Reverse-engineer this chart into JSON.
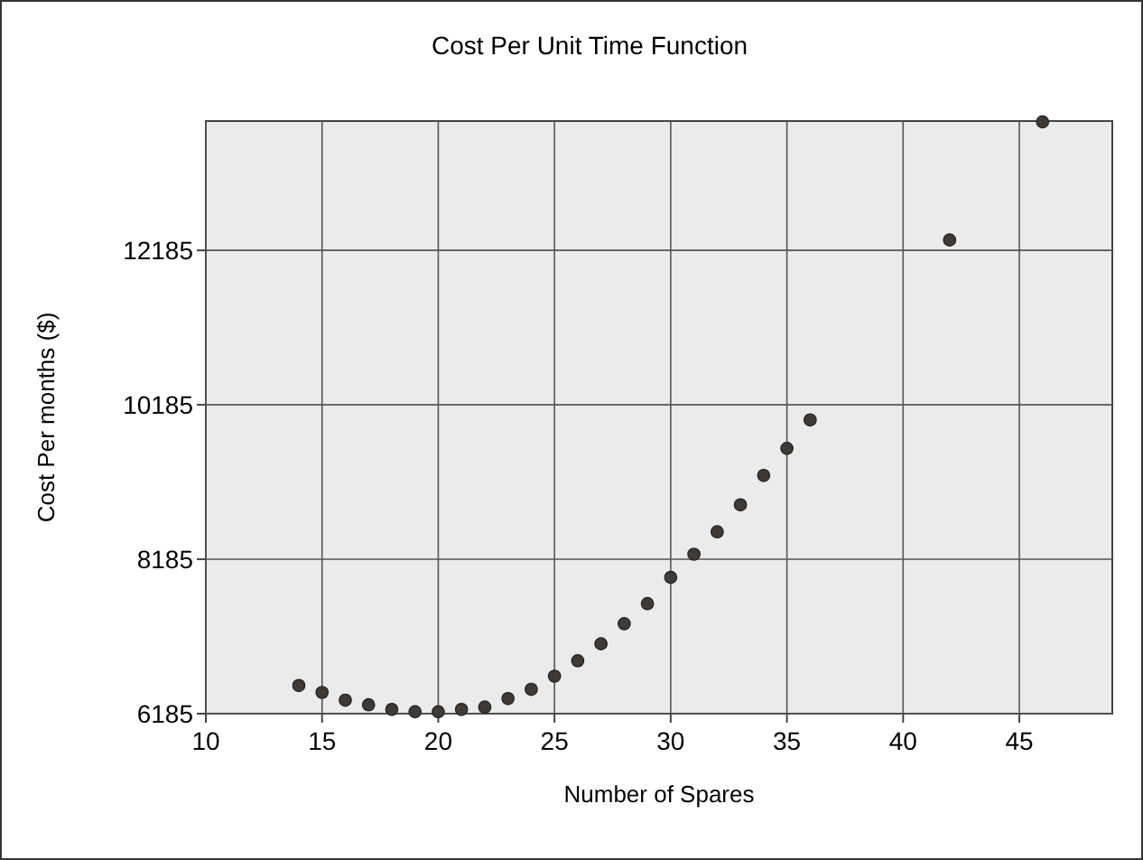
{
  "chart_data": {
    "type": "scatter",
    "title": "Cost Per Unit Time Function",
    "xlabel": "Number of Spares",
    "ylabel": "Cost Per months ($)",
    "x": [
      14,
      15,
      16,
      17,
      18,
      19,
      20,
      21,
      22,
      23,
      24,
      25,
      26,
      27,
      28,
      29,
      30,
      31,
      32,
      33,
      34,
      35,
      36,
      42,
      46
    ],
    "series": [
      {
        "color": "#3f3a36",
        "values": [
          6550,
          6460,
          6360,
          6300,
          6240,
          6210,
          6210,
          6240,
          6270,
          6380,
          6500,
          6670,
          6870,
          7090,
          7350,
          7610,
          7950,
          8250,
          8540,
          8890,
          9270,
          9620,
          9990,
          12320,
          13850
        ]
      }
    ],
    "xlim": [
      10,
      49
    ],
    "xticks": [
      10,
      15,
      20,
      25,
      30,
      35,
      40,
      45
    ],
    "ylim": [
      6185,
      13860
    ],
    "yticks": [
      6185,
      8185,
      10185,
      12185
    ],
    "grid": true,
    "marker": "circle"
  }
}
